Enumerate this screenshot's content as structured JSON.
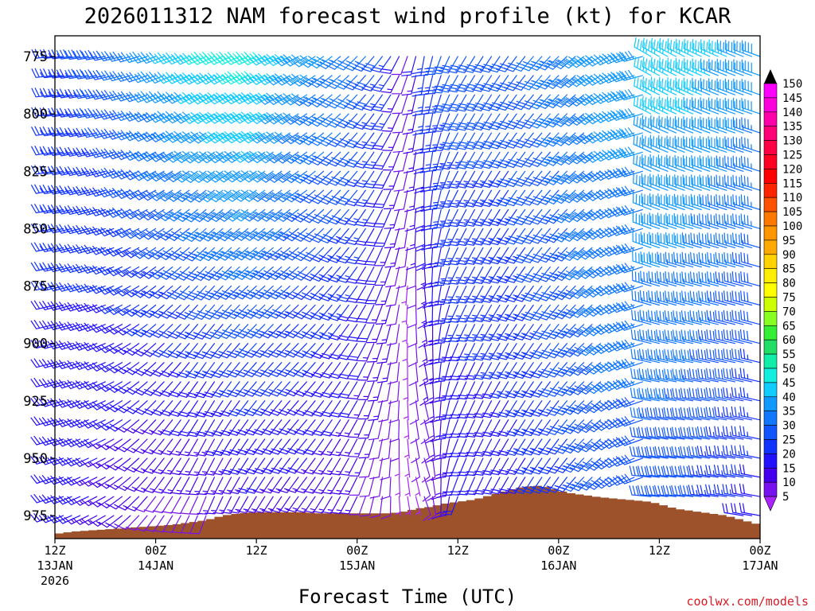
{
  "chart_data": {
    "type": "wind_profile",
    "title": "2026011312 NAM forecast wind profile (kt) for KCAR",
    "xlabel": "Forecast Time (UTC)",
    "ylabel": "",
    "credit": "coolwx.com/models",
    "y_range": [
      985,
      766
    ],
    "y_ticks": [
      775,
      800,
      825,
      850,
      875,
      900,
      925,
      950,
      975
    ],
    "y_levels": [
      775,
      783.3,
      791.7,
      800,
      808.3,
      816.7,
      825,
      833.3,
      841.7,
      850,
      858.3,
      866.7,
      875,
      883.3,
      891.7,
      900,
      908.3,
      916.7,
      925,
      933.3,
      941.7,
      950,
      958.3,
      966.7,
      975,
      983.3
    ],
    "x_range_hours": [
      0,
      84
    ],
    "x_ticks": [
      {
        "hour": 0,
        "line1": "12Z",
        "line2": "13JAN",
        "line3": "2026"
      },
      {
        "hour": 12,
        "line1": "00Z",
        "line2": "14JAN",
        "line3": ""
      },
      {
        "hour": 24,
        "line1": "12Z",
        "line2": "",
        "line3": ""
      },
      {
        "hour": 36,
        "line1": "00Z",
        "line2": "15JAN",
        "line3": ""
      },
      {
        "hour": 48,
        "line1": "12Z",
        "line2": "",
        "line3": ""
      },
      {
        "hour": 60,
        "line1": "00Z",
        "line2": "16JAN",
        "line3": ""
      },
      {
        "hour": 72,
        "line1": "12Z",
        "line2": "",
        "line3": ""
      },
      {
        "hour": 84,
        "line1": "00Z",
        "line2": "17JAN",
        "line3": ""
      }
    ],
    "terrain_color": "#9d522c",
    "surface_pressure": [
      {
        "h": 0,
        "p": 983
      },
      {
        "h": 2,
        "p": 982
      },
      {
        "h": 6,
        "p": 981
      },
      {
        "h": 10,
        "p": 980
      },
      {
        "h": 14,
        "p": 979
      },
      {
        "h": 16,
        "p": 978
      },
      {
        "h": 18,
        "p": 977
      },
      {
        "h": 19,
        "p": 976
      },
      {
        "h": 20,
        "p": 975
      },
      {
        "h": 22,
        "p": 974
      },
      {
        "h": 24,
        "p": 973.5
      },
      {
        "h": 30,
        "p": 973.5
      },
      {
        "h": 31,
        "p": 974
      },
      {
        "h": 40,
        "p": 974
      },
      {
        "h": 42,
        "p": 973
      },
      {
        "h": 43,
        "p": 972
      },
      {
        "h": 45,
        "p": 971
      },
      {
        "h": 46,
        "p": 970
      },
      {
        "h": 48,
        "p": 969
      },
      {
        "h": 50,
        "p": 968
      },
      {
        "h": 51,
        "p": 967
      },
      {
        "h": 52,
        "p": 966
      },
      {
        "h": 53,
        "p": 965
      },
      {
        "h": 54,
        "p": 964
      },
      {
        "h": 55,
        "p": 963
      },
      {
        "h": 57,
        "p": 962
      },
      {
        "h": 58,
        "p": 962
      },
      {
        "h": 59,
        "p": 963
      },
      {
        "h": 60,
        "p": 964
      },
      {
        "h": 61,
        "p": 965
      },
      {
        "h": 63,
        "p": 966
      },
      {
        "h": 65,
        "p": 967
      },
      {
        "h": 68,
        "p": 968
      },
      {
        "h": 71,
        "p": 969
      },
      {
        "h": 72,
        "p": 970
      },
      {
        "h": 73,
        "p": 971
      },
      {
        "h": 74,
        "p": 972
      },
      {
        "h": 76,
        "p": 973
      },
      {
        "h": 78,
        "p": 974
      },
      {
        "h": 80,
        "p": 975
      },
      {
        "h": 81,
        "p": 976
      },
      {
        "h": 82,
        "p": 977
      },
      {
        "h": 83,
        "p": 978
      },
      {
        "h": 84,
        "p": 979
      }
    ],
    "regimes": [
      {
        "h": 0,
        "upper": {
          "dir": 265,
          "spd": 25
        },
        "lower": {
          "dir": 250,
          "spd": 20
        }
      },
      {
        "h": 6,
        "upper": {
          "dir": 260,
          "spd": 30
        },
        "lower": {
          "dir": 240,
          "spd": 15
        }
      },
      {
        "h": 12,
        "upper": {
          "dir": 250,
          "spd": 40
        },
        "lower": {
          "dir": 215,
          "spd": 10
        }
      },
      {
        "h": 18,
        "upper": {
          "dir": 245,
          "spd": 48
        },
        "lower": {
          "dir": 200,
          "spd": 10
        }
      },
      {
        "h": 24,
        "upper": {
          "dir": 245,
          "spd": 50
        },
        "lower": {
          "dir": 210,
          "spd": 15
        }
      },
      {
        "h": 30,
        "upper": {
          "dir": 240,
          "spd": 40
        },
        "lower": {
          "dir": 215,
          "spd": 15
        }
      },
      {
        "h": 36,
        "upper": {
          "dir": 225,
          "spd": 35
        },
        "lower": {
          "dir": 205,
          "spd": 12
        }
      },
      {
        "h": 40,
        "upper": {
          "dir": 215,
          "spd": 25
        },
        "lower": {
          "dir": 180,
          "spd": 7
        }
      },
      {
        "h": 42,
        "upper": {
          "dir": 200,
          "spd": 10
        },
        "lower": {
          "dir": 170,
          "spd": 5
        }
      },
      {
        "h": 44,
        "upper": {
          "dir": 190,
          "spd": 25
        },
        "lower": {
          "dir": 160,
          "spd": 8
        }
      },
      {
        "h": 48,
        "upper": {
          "dir": 210,
          "spd": 30
        },
        "lower": {
          "dir": 200,
          "spd": 18
        }
      },
      {
        "h": 54,
        "upper": {
          "dir": 215,
          "spd": 30
        },
        "lower": {
          "dir": 210,
          "spd": 20
        }
      },
      {
        "h": 60,
        "upper": {
          "dir": 225,
          "spd": 35
        },
        "lower": {
          "dir": 215,
          "spd": 25
        }
      },
      {
        "h": 66,
        "upper": {
          "dir": 240,
          "spd": 40
        },
        "lower": {
          "dir": 230,
          "spd": 30
        }
      },
      {
        "h": 70,
        "upper": {
          "dir": 255,
          "spd": 40
        },
        "lower": {
          "dir": 250,
          "spd": 30
        }
      },
      {
        "h": 71,
        "upper": {
          "dir": 300,
          "spd": 45
        },
        "lower": {
          "dir": 275,
          "spd": 30
        }
      },
      {
        "h": 76,
        "upper": {
          "dir": 295,
          "spd": 45
        },
        "lower": {
          "dir": 275,
          "spd": 28
        }
      },
      {
        "h": 84,
        "upper": {
          "dir": 290,
          "spd": 40
        },
        "lower": {
          "dir": 280,
          "spd": 20
        }
      }
    ],
    "colorbar": {
      "labels": [
        150,
        145,
        140,
        135,
        130,
        125,
        120,
        115,
        110,
        105,
        100,
        95,
        90,
        85,
        80,
        75,
        70,
        65,
        60,
        55,
        50,
        45,
        40,
        35,
        30,
        25,
        20,
        15,
        10,
        5
      ],
      "colors": [
        "#ff00ff",
        "#ff00dd",
        "#ff00aa",
        "#ff0077",
        "#ff0044",
        "#ff0022",
        "#ff0000",
        "#ff2400",
        "#ff5200",
        "#ff7800",
        "#ff9600",
        "#ffaa00",
        "#ffd200",
        "#ffee00",
        "#ffff00",
        "#ccff00",
        "#88ff22",
        "#33ee33",
        "#22dd66",
        "#11eeaa",
        "#11eedd",
        "#11ccff",
        "#1199ff",
        "#1177ff",
        "#1155ff",
        "#1133ff",
        "#2211ff",
        "#4400ee",
        "#7711ee",
        "#aa22ff"
      ]
    }
  }
}
